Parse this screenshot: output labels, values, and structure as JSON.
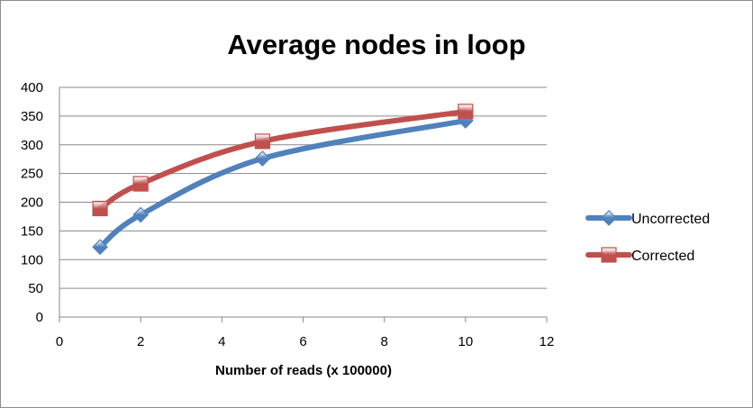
{
  "chart_data": {
    "type": "line",
    "title": "Average nodes in loop",
    "xlabel": "Number of reads (x 100000)",
    "ylabel": "",
    "xlim": [
      0,
      12
    ],
    "ylim": [
      0,
      400
    ],
    "x_ticks": [
      0,
      2,
      4,
      6,
      8,
      10,
      12
    ],
    "y_ticks": [
      0,
      50,
      100,
      150,
      200,
      250,
      300,
      350,
      400
    ],
    "grid": "horizontal",
    "smooth": true,
    "legend_position": "right",
    "series": [
      {
        "name": "Uncorrected",
        "color": "#4f81bd",
        "marker": "diamond",
        "points": [
          {
            "x": 1,
            "y": 122
          },
          {
            "x": 2,
            "y": 178
          },
          {
            "x": 5,
            "y": 276
          },
          {
            "x": 10,
            "y": 342
          }
        ]
      },
      {
        "name": "Corrected",
        "color": "#c0504d",
        "marker": "square",
        "points": [
          {
            "x": 1,
            "y": 189
          },
          {
            "x": 2,
            "y": 232
          },
          {
            "x": 5,
            "y": 306
          },
          {
            "x": 10,
            "y": 358
          }
        ]
      }
    ]
  }
}
